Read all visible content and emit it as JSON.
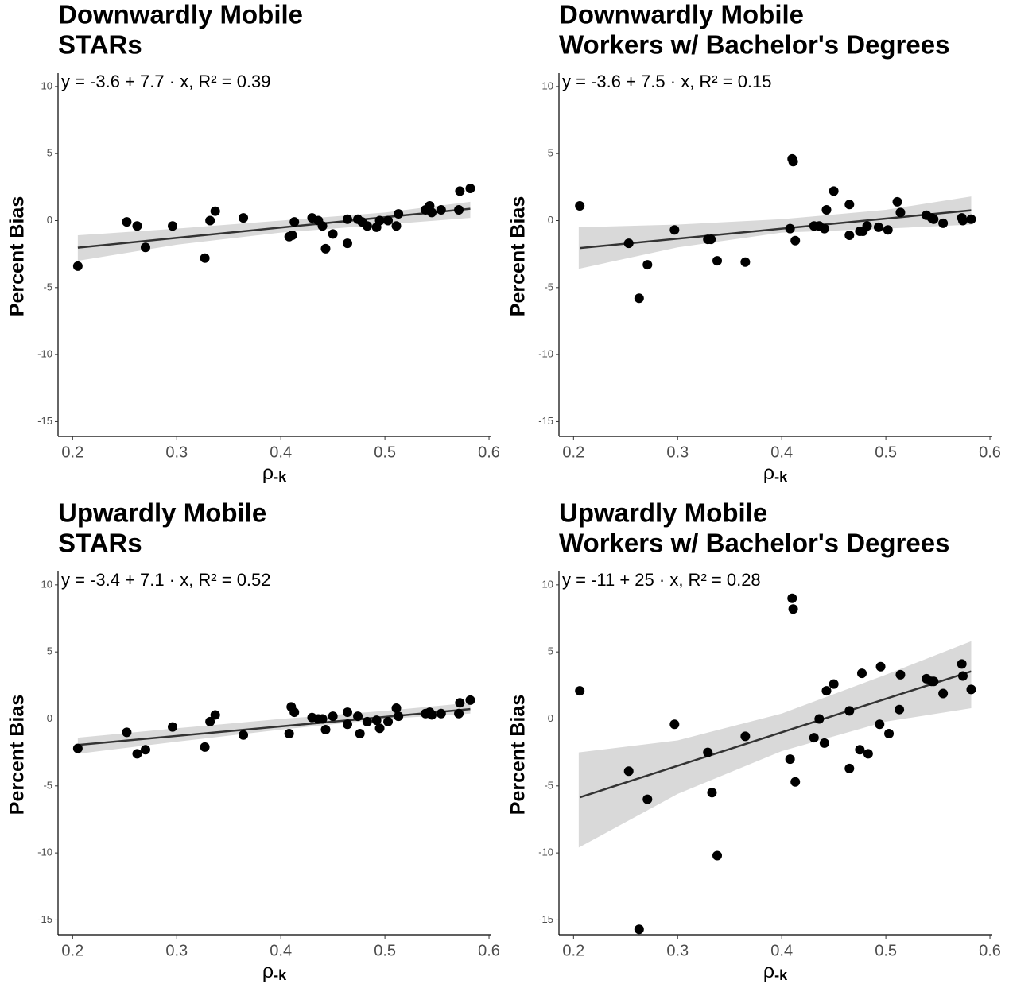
{
  "chart_data": [
    {
      "type": "scatter",
      "title": [
        "Downwardly Mobile",
        "STARs"
      ],
      "annotation": "y = -3.6 + 7.7 · x,  R² = 0.39",
      "ylabel": "Percent Bias",
      "xlabel": "ρ",
      "xlabel_sub": "-k",
      "x": [
        0.205,
        0.252,
        0.262,
        0.27,
        0.296,
        0.327,
        0.332,
        0.337,
        0.364,
        0.408,
        0.411,
        0.413,
        0.43,
        0.436,
        0.44,
        0.443,
        0.45,
        0.464,
        0.464,
        0.474,
        0.478,
        0.483,
        0.492,
        0.495,
        0.503,
        0.511,
        0.513,
        0.539,
        0.543,
        0.545,
        0.554,
        0.571,
        0.572,
        0.582
      ],
      "y": [
        -3.4,
        -0.1,
        -0.4,
        -2.0,
        -0.4,
        -2.8,
        0.0,
        0.7,
        0.2,
        -1.2,
        -1.1,
        -0.1,
        0.2,
        0.0,
        -0.4,
        -2.1,
        -1.0,
        0.1,
        -1.7,
        0.1,
        -0.1,
        -0.4,
        -0.5,
        0.0,
        0.0,
        -0.4,
        0.5,
        0.8,
        1.1,
        0.6,
        0.8,
        0.8,
        2.2,
        2.4
      ],
      "fit": {
        "intercept": -3.6,
        "slope": 7.7
      },
      "band": {
        "x": [
          0.205,
          0.3,
          0.4,
          0.5,
          0.582
        ],
        "lower": [
          -3.0,
          -1.8,
          -0.9,
          -0.3,
          0.2
        ],
        "upper": [
          -1.1,
          -0.6,
          0.0,
          0.6,
          1.4
        ]
      },
      "xlim": [
        0.186,
        0.6015
      ],
      "ylim": [
        -16.1,
        11
      ],
      "xticks": [
        0.2,
        0.3,
        0.4,
        0.5,
        0.6
      ],
      "yticks": [
        -15,
        -10,
        -5,
        0,
        5,
        10
      ],
      "color": "#000000",
      "band_color": "#d9d9d9",
      "line_color": "#333333"
    },
    {
      "type": "scatter",
      "title": [
        "Downwardly Mobile",
        "Workers w/ Bachelor's Degrees"
      ],
      "annotation": "y = -3.6 + 7.5 · x,  R² = 0.15",
      "ylabel": "Percent Bias",
      "xlabel": "ρ",
      "xlabel_sub": "-k",
      "x": [
        0.206,
        0.253,
        0.263,
        0.271,
        0.297,
        0.329,
        0.332,
        0.338,
        0.365,
        0.408,
        0.41,
        0.411,
        0.413,
        0.431,
        0.436,
        0.441,
        0.443,
        0.45,
        0.465,
        0.465,
        0.475,
        0.478,
        0.482,
        0.493,
        0.502,
        0.511,
        0.514,
        0.539,
        0.544,
        0.546,
        0.555,
        0.573,
        0.574,
        0.582
      ],
      "y": [
        1.1,
        -1.7,
        -5.8,
        -3.3,
        -0.7,
        -1.4,
        -1.4,
        -3.0,
        -3.1,
        -0.6,
        4.6,
        4.4,
        -1.5,
        -0.4,
        -0.4,
        -0.6,
        0.8,
        2.2,
        -1.1,
        1.2,
        -0.8,
        -0.8,
        -0.4,
        -0.5,
        -0.7,
        1.4,
        0.6,
        0.4,
        0.2,
        0.1,
        -0.2,
        0.2,
        0.0,
        0.1
      ],
      "fit": {
        "intercept": -3.6,
        "slope": 7.5
      },
      "band": {
        "x": [
          0.205,
          0.3,
          0.4,
          0.5,
          0.582
        ],
        "lower": [
          -3.6,
          -2.0,
          -0.9,
          -0.6,
          -0.3
        ],
        "upper": [
          -0.5,
          -0.3,
          0.1,
          0.8,
          1.8
        ]
      },
      "xlim": [
        0.186,
        0.6015
      ],
      "ylim": [
        -16.1,
        11
      ],
      "xticks": [
        0.2,
        0.3,
        0.4,
        0.5,
        0.6
      ],
      "yticks": [
        -15,
        -10,
        -5,
        0,
        5,
        10
      ],
      "color": "#000000",
      "band_color": "#d9d9d9",
      "line_color": "#333333"
    },
    {
      "type": "scatter",
      "title": [
        "Upwardly Mobile",
        "STARs"
      ],
      "annotation": "y = -3.4 + 7.1 · x,  R² = 0.52",
      "ylabel": "Percent Bias",
      "xlabel": "ρ",
      "xlabel_sub": "-k",
      "x": [
        0.205,
        0.252,
        0.262,
        0.27,
        0.296,
        0.327,
        0.332,
        0.337,
        0.364,
        0.408,
        0.41,
        0.413,
        0.43,
        0.436,
        0.44,
        0.443,
        0.45,
        0.464,
        0.464,
        0.474,
        0.476,
        0.483,
        0.492,
        0.495,
        0.503,
        0.511,
        0.513,
        0.539,
        0.543,
        0.545,
        0.554,
        0.571,
        0.572,
        0.582
      ],
      "y": [
        -2.2,
        -1.0,
        -2.6,
        -2.3,
        -0.6,
        -2.1,
        -0.2,
        0.3,
        -1.2,
        -1.1,
        0.9,
        0.5,
        0.1,
        0.0,
        0.0,
        -0.8,
        0.2,
        0.5,
        -0.4,
        0.2,
        -1.1,
        -0.2,
        -0.1,
        -0.7,
        -0.2,
        0.8,
        0.2,
        0.4,
        0.5,
        0.3,
        0.4,
        0.4,
        1.2,
        1.4
      ],
      "fit": {
        "intercept": -3.4,
        "slope": 7.1
      },
      "band": {
        "x": [
          0.205,
          0.3,
          0.4,
          0.5,
          0.582
        ],
        "lower": [
          -2.6,
          -1.7,
          -0.8,
          0.0,
          0.4
        ],
        "upper": [
          -1.4,
          -0.7,
          0.0,
          0.6,
          1.2
        ]
      },
      "xlim": [
        0.186,
        0.6015
      ],
      "ylim": [
        -16.1,
        11
      ],
      "xticks": [
        0.2,
        0.3,
        0.4,
        0.5,
        0.6
      ],
      "yticks": [
        -15,
        -10,
        -5,
        0,
        5,
        10
      ],
      "color": "#000000",
      "band_color": "#d9d9d9",
      "line_color": "#333333"
    },
    {
      "type": "scatter",
      "title": [
        "Upwardly Mobile",
        "Workers w/ Bachelor's Degrees"
      ],
      "annotation": "y = -11 + 25 · x,  R² = 0.28",
      "ylabel": "Percent Bias",
      "xlabel": "ρ",
      "xlabel_sub": "-k",
      "x": [
        0.206,
        0.253,
        0.263,
        0.271,
        0.297,
        0.329,
        0.333,
        0.338,
        0.365,
        0.408,
        0.41,
        0.411,
        0.413,
        0.431,
        0.436,
        0.441,
        0.443,
        0.45,
        0.465,
        0.465,
        0.475,
        0.477,
        0.483,
        0.494,
        0.495,
        0.503,
        0.513,
        0.514,
        0.539,
        0.544,
        0.546,
        0.555,
        0.573,
        0.574,
        0.582
      ],
      "y": [
        2.1,
        -3.9,
        -15.7,
        -6.0,
        -0.4,
        -2.5,
        -5.5,
        -10.2,
        -1.3,
        -3.0,
        9.0,
        8.2,
        -4.7,
        -1.4,
        0.0,
        -1.8,
        2.1,
        2.6,
        0.6,
        -3.7,
        -2.3,
        3.4,
        -2.6,
        -0.4,
        3.9,
        -1.1,
        0.7,
        3.3,
        3.0,
        2.8,
        2.8,
        1.9,
        4.1,
        3.2,
        2.2
      ],
      "fit": {
        "intercept": -11,
        "slope": 25
      },
      "band": {
        "x": [
          0.205,
          0.3,
          0.4,
          0.5,
          0.582
        ],
        "lower": [
          -9.6,
          -5.6,
          -2.4,
          -0.2,
          0.8
        ],
        "upper": [
          -2.5,
          -1.6,
          0.4,
          3.3,
          5.8
        ]
      },
      "xlim": [
        0.186,
        0.6015
      ],
      "ylim": [
        -16.1,
        11
      ],
      "xticks": [
        0.2,
        0.3,
        0.4,
        0.5,
        0.6
      ],
      "yticks": [
        -15,
        -10,
        -5,
        0,
        5,
        10
      ],
      "color": "#000000",
      "band_color": "#d9d9d9",
      "line_color": "#333333"
    }
  ]
}
